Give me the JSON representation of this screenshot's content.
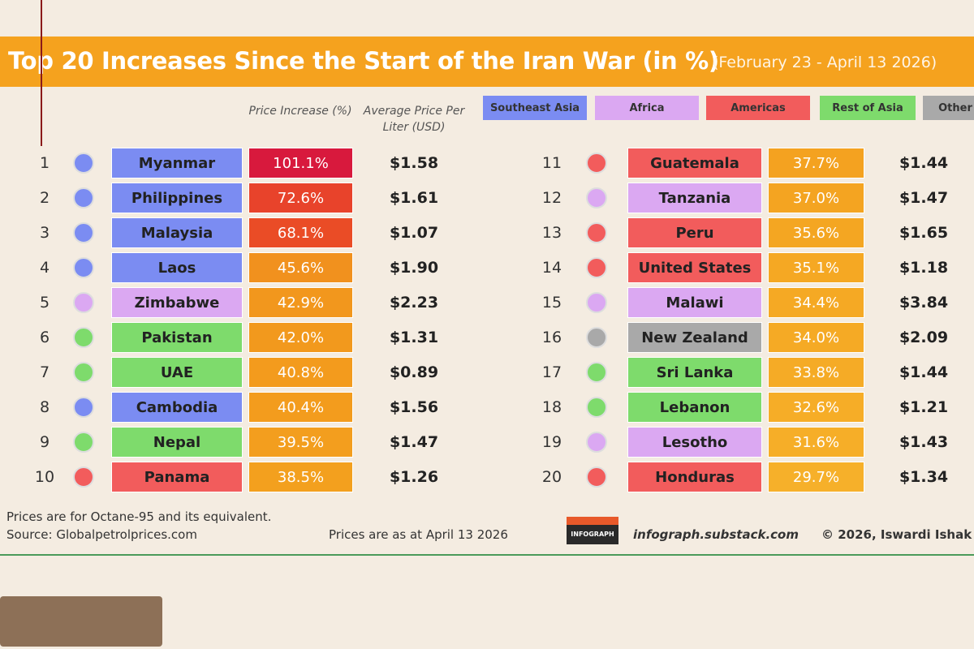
{
  "header": {
    "title": "Top 20 Increases Since the Start of the Iran War (in %)",
    "subtitle": "(February 23 - April 13 2026)"
  },
  "legend": [
    {
      "label": "Southeast Asia",
      "color": "#7b8cf2"
    },
    {
      "label": "Africa",
      "color": "#dba8f2"
    },
    {
      "label": "Americas",
      "color": "#f25c5c"
    },
    {
      "label": "Rest of Asia",
      "color": "#7edb6c"
    },
    {
      "label": "Other",
      "color": "#a9a9a9"
    }
  ],
  "columns": {
    "increase": "Price Increase (%)",
    "price": "Average Price Per Liter (USD)"
  },
  "rows": [
    {
      "rank": 1,
      "country": "Myanmar",
      "increase": "101.1%",
      "price": "$1.58",
      "color": "#7b8cf2",
      "increase_color": "#d8193d"
    },
    {
      "rank": 2,
      "country": "Philippines",
      "increase": "72.6%",
      "price": "$1.61",
      "color": "#7b8cf2",
      "increase_color": "#e8432b"
    },
    {
      "rank": 3,
      "country": "Malaysia",
      "increase": "68.1%",
      "price": "$1.07",
      "color": "#7b8cf2",
      "increase_color": "#ea4c26"
    },
    {
      "rank": 4,
      "country": "Laos",
      "increase": "45.6%",
      "price": "$1.90",
      "color": "#7b8cf2",
      "increase_color": "#f1911e"
    },
    {
      "rank": 5,
      "country": "Zimbabwe",
      "increase": "42.9%",
      "price": "$2.23",
      "color": "#dba8f2",
      "increase_color": "#f2971d"
    },
    {
      "rank": 6,
      "country": "Pakistan",
      "increase": "42.0%",
      "price": "$1.31",
      "color": "#7edb6c",
      "increase_color": "#f2991d"
    },
    {
      "rank": 7,
      "country": "UAE",
      "increase": "40.8%",
      "price": "$0.89",
      "color": "#7edb6c",
      "increase_color": "#f39b1d"
    },
    {
      "rank": 8,
      "country": "Cambodia",
      "increase": "40.4%",
      "price": "$1.56",
      "color": "#7b8cf2",
      "increase_color": "#f39c1d"
    },
    {
      "rank": 9,
      "country": "Nepal",
      "increase": "39.5%",
      "price": "$1.47",
      "color": "#7edb6c",
      "increase_color": "#f39e1e"
    },
    {
      "rank": 10,
      "country": "Panama",
      "increase": "38.5%",
      "price": "$1.26",
      "color": "#f25c5c",
      "increase_color": "#f3a01e"
    },
    {
      "rank": 11,
      "country": "Guatemala",
      "increase": "37.7%",
      "price": "$1.44",
      "color": "#f25c5c",
      "increase_color": "#f4a220"
    },
    {
      "rank": 12,
      "country": "Tanzania",
      "increase": "37.0%",
      "price": "$1.47",
      "color": "#dba8f2",
      "increase_color": "#f4a421"
    },
    {
      "rank": 13,
      "country": "Peru",
      "increase": "35.6%",
      "price": "$1.65",
      "color": "#f25c5c",
      "increase_color": "#f4a622"
    },
    {
      "rank": 14,
      "country": "United States",
      "increase": "35.1%",
      "price": "$1.18",
      "color": "#f25c5c",
      "increase_color": "#f5a823"
    },
    {
      "rank": 15,
      "country": "Malawi",
      "increase": "34.4%",
      "price": "$3.84",
      "color": "#dba8f2",
      "increase_color": "#f5a924"
    },
    {
      "rank": 16,
      "country": "New Zealand",
      "increase": "34.0%",
      "price": "$2.09",
      "color": "#a9a9a9",
      "increase_color": "#f5aa25"
    },
    {
      "rank": 17,
      "country": "Sri Lanka",
      "increase": "33.8%",
      "price": "$1.44",
      "color": "#7edb6c",
      "increase_color": "#f5ab26"
    },
    {
      "rank": 18,
      "country": "Lebanon",
      "increase": "32.6%",
      "price": "$1.21",
      "color": "#7edb6c",
      "increase_color": "#f6ad27"
    },
    {
      "rank": 19,
      "country": "Lesotho",
      "increase": "31.6%",
      "price": "$1.43",
      "color": "#dba8f2",
      "increase_color": "#f6ae28"
    },
    {
      "rank": 20,
      "country": "Honduras",
      "increase": "29.7%",
      "price": "$1.34",
      "color": "#f25c5c",
      "increase_color": "#f6b02a"
    }
  ],
  "footer": {
    "note": "Prices are for Octane-95 and its equivalent.",
    "source": "Source: Globalpetrolprices.com",
    "date_note": "Prices are as at April 13 2026",
    "logo": "INFOGRAPH",
    "website": "infograph.substack.com",
    "credit": "© 2026, Iswardi Ishak"
  }
}
